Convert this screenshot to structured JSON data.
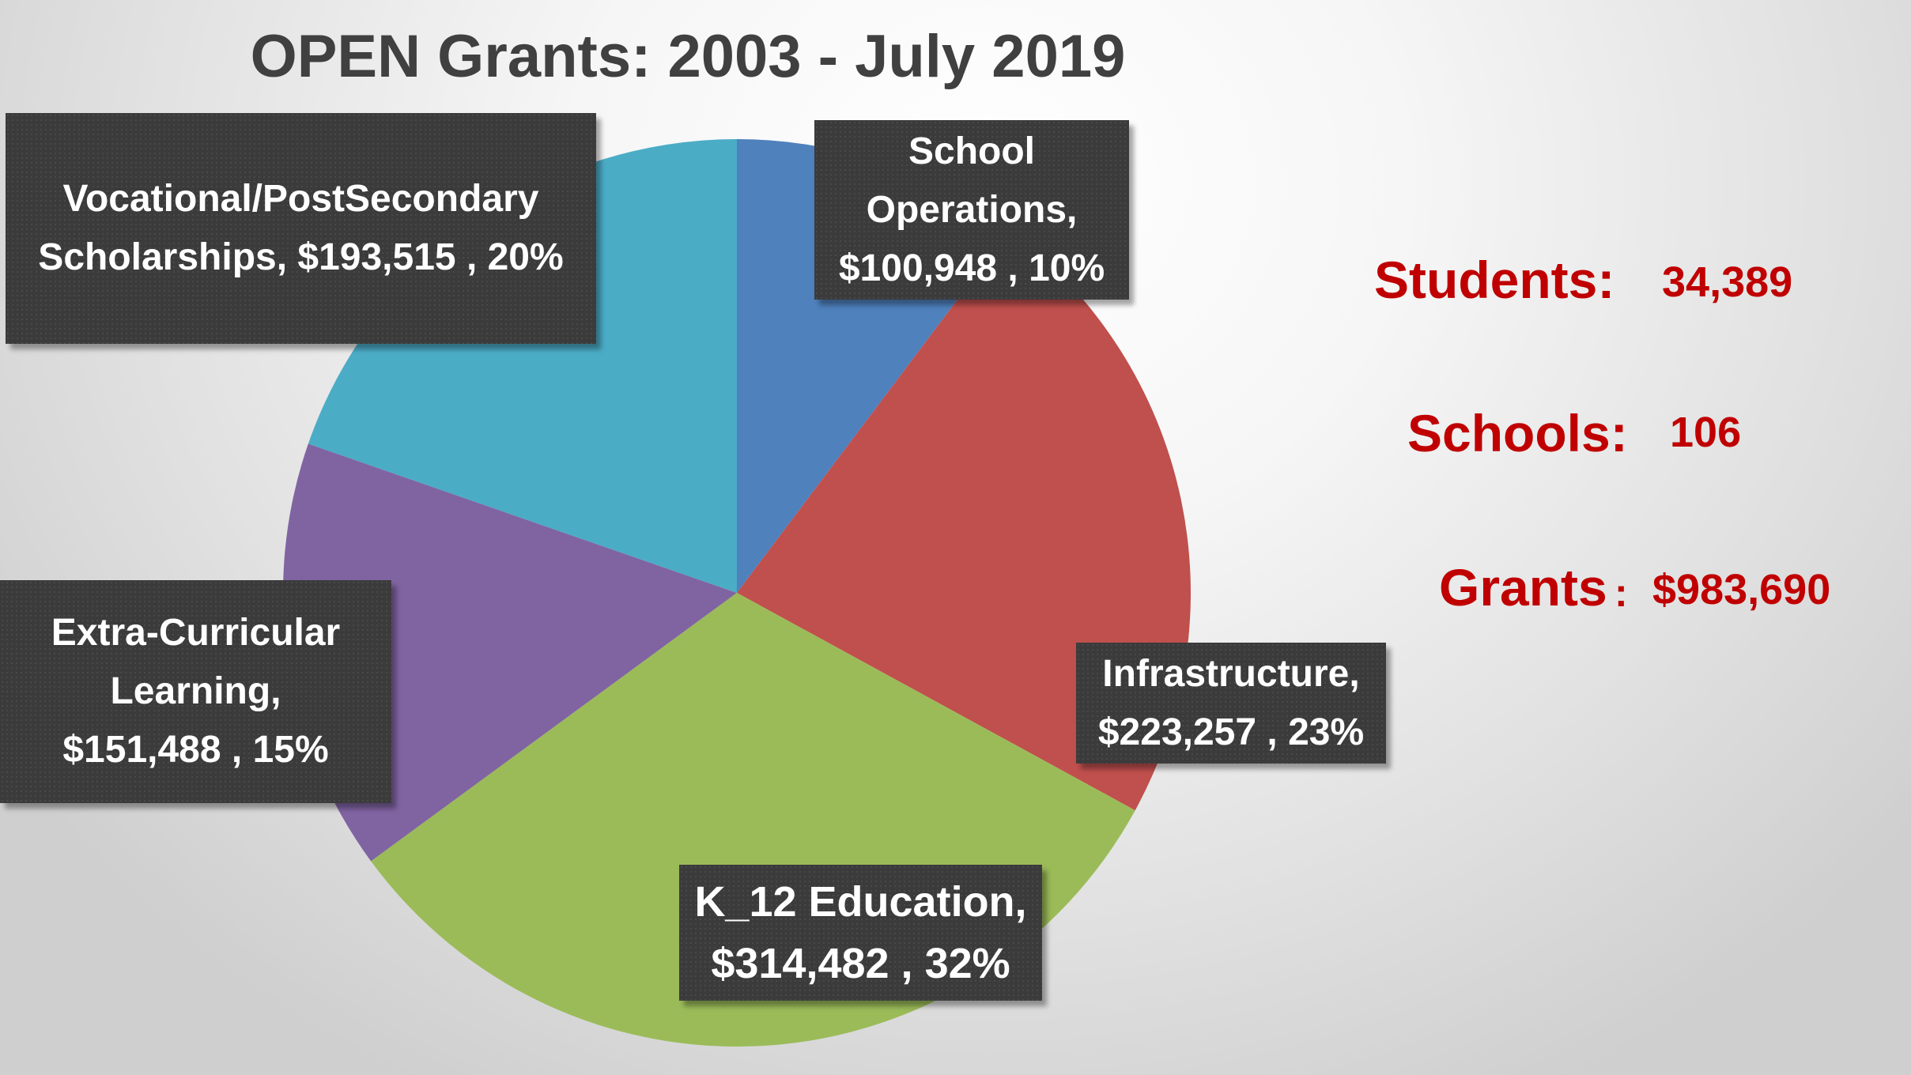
{
  "chart_data": {
    "type": "pie",
    "title": "OPEN Grants: 2003 - July 2019",
    "slices": [
      {
        "label": "School Operations",
        "value": 100948,
        "percent": 10,
        "value_text": "$100,948",
        "percent_text": "10%",
        "color": "#4f81bd"
      },
      {
        "label": "Infrastructure",
        "value": 223257,
        "percent": 23,
        "value_text": "$223,257",
        "percent_text": "23%",
        "color": "#c0504d"
      },
      {
        "label": "K_12 Education",
        "value": 314482,
        "percent": 32,
        "value_text": "$314,482",
        "percent_text": "32%",
        "color": "#9bbb59"
      },
      {
        "label": "Extra-Curricular Learning",
        "value": 151488,
        "percent": 15,
        "value_text": "$151,488",
        "percent_text": "15%",
        "color": "#8064a2"
      },
      {
        "label": "Vocational/PostSecondary Scholarships",
        "value": 193515,
        "percent": 20,
        "value_text": "$193,515",
        "percent_text": "20%",
        "color": "#4bacc6"
      }
    ],
    "labels": {
      "school_ops": [
        "School",
        "Operations,",
        "$100,948 , 10%"
      ],
      "infrastructure": [
        "Infrastructure,",
        "$223,257 , 23%"
      ],
      "k12": [
        "K_12 Education,",
        "$314,482 , 32%"
      ],
      "extra": [
        "Extra-Curricular",
        "Learning,",
        "$151,488 , 15%"
      ],
      "vocational": [
        "Vocational/PostSecondary",
        "Scholarships,  $193,515 , 20%"
      ]
    }
  },
  "stats": {
    "students_label": "Students:",
    "students_value": "34,389",
    "schools_label": "Schools:",
    "schools_value": "106",
    "grants_label": "Grants",
    "grants_colon": ":",
    "grants_value": "$983,690"
  }
}
